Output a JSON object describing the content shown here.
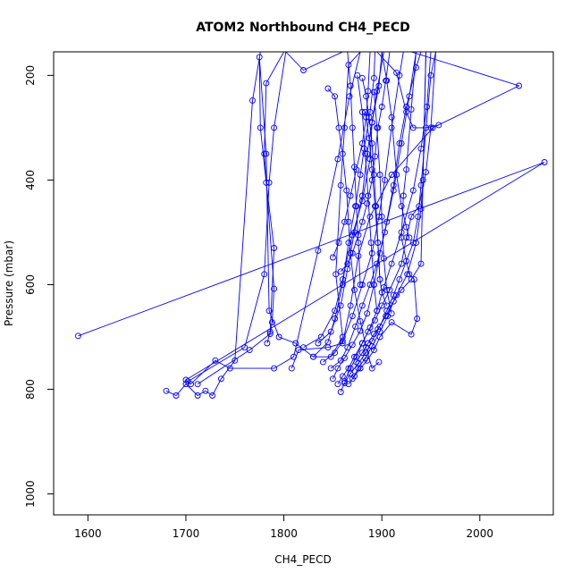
{
  "chart_data": {
    "type": "line",
    "title": "ATOM2 Northbound CH4_PECD",
    "xlabel": "CH4_PECD",
    "ylabel": "Pressure (mbar)",
    "xlim": [
      1565,
      2075
    ],
    "ylim": [
      1040,
      155
    ],
    "y_reversed": true,
    "x_ticks": [
      1600,
      1700,
      1800,
      1900,
      2000
    ],
    "y_ticks": [
      200,
      400,
      600,
      800,
      1000
    ],
    "x_tick_labels": [
      "1600",
      "1700",
      "1800",
      "1900",
      "2000"
    ],
    "y_tick_labels": [
      "200",
      "400",
      "600",
      "800",
      "1000"
    ],
    "grid": false,
    "legend": "none",
    "series_color": "#0000ff",
    "series": [
      {
        "points": [
          [
            1590,
            698
          ],
          [
            2066,
            366
          ],
          [
            1700,
            782
          ],
          [
            1705,
            790
          ],
          [
            1730,
            745
          ],
          [
            1745,
            760
          ],
          [
            1790,
            760
          ],
          [
            1810,
            738
          ],
          [
            1835,
            535
          ],
          [
            1855,
            360
          ],
          [
            1867,
            240
          ],
          [
            1878,
            155
          ],
          [
            1866,
            180
          ],
          [
            1862,
            300
          ],
          [
            1858,
            410
          ],
          [
            1853,
            580
          ],
          [
            1860,
            700
          ],
          [
            1848,
            738
          ],
          [
            1830,
            738
          ],
          [
            1812,
            712
          ],
          [
            1795,
            700
          ],
          [
            1785,
            650
          ],
          [
            1782,
            350
          ],
          [
            1775,
            165
          ],
          [
            1776,
            300
          ],
          [
            1782,
            405
          ],
          [
            1790,
            530
          ],
          [
            1786,
            690
          ],
          [
            1783,
            712
          ]
        ]
      },
      {
        "points": [
          [
            1680,
            803
          ],
          [
            1690,
            812
          ],
          [
            1700,
            790
          ],
          [
            1712,
            812
          ],
          [
            1720,
            803
          ],
          [
            1727,
            812
          ],
          [
            1736,
            780
          ],
          [
            1750,
            745
          ],
          [
            1768,
            248
          ],
          [
            1776,
            155
          ]
        ]
      },
      {
        "points": [
          [
            1702,
            785
          ],
          [
            1760,
            720
          ],
          [
            1780,
            580
          ],
          [
            1785,
            405
          ],
          [
            1790,
            300
          ],
          [
            1802,
            155
          ],
          [
            1820,
            190
          ],
          [
            1860,
            155
          ],
          [
            1930,
            155
          ],
          [
            2040,
            220
          ],
          [
            1952,
            300
          ],
          [
            1910,
            390
          ],
          [
            1888,
            470
          ],
          [
            1876,
            545
          ],
          [
            1868,
            640
          ],
          [
            1860,
            712
          ],
          [
            1845,
            720
          ],
          [
            1815,
            725
          ],
          [
            1808,
            760
          ]
        ]
      },
      {
        "points": [
          [
            1712,
            790
          ],
          [
            1765,
            725
          ],
          [
            1786,
            694
          ],
          [
            1788,
            672
          ],
          [
            1790,
            608
          ],
          [
            1780,
            350
          ],
          [
            1782,
            215
          ],
          [
            1800,
            155
          ],
          [
            1850,
            155
          ],
          [
            1895,
            155
          ],
          [
            1915,
            195
          ],
          [
            1925,
            270
          ],
          [
            1932,
            300
          ],
          [
            1945,
            300
          ],
          [
            1958,
            295
          ]
        ]
      },
      {
        "points": [
          [
            1820,
            720
          ],
          [
            1838,
            700
          ],
          [
            1852,
            650
          ],
          [
            1860,
            590
          ],
          [
            1870,
            505
          ],
          [
            1880,
            440
          ],
          [
            1888,
            360
          ],
          [
            1890,
            290
          ],
          [
            1897,
            220
          ],
          [
            1900,
            155
          ]
        ]
      },
      {
        "points": [
          [
            1830,
            738
          ],
          [
            1845,
            710
          ],
          [
            1852,
            665
          ],
          [
            1860,
            600
          ],
          [
            1866,
            520
          ],
          [
            1873,
            450
          ],
          [
            1878,
            390
          ],
          [
            1882,
            340
          ],
          [
            1888,
            270
          ],
          [
            1892,
            205
          ],
          [
            1893,
            155
          ]
        ]
      },
      {
        "points": [
          [
            1835,
            712
          ],
          [
            1848,
            690
          ],
          [
            1858,
            640
          ],
          [
            1865,
            570
          ],
          [
            1872,
            500
          ],
          [
            1880,
            430
          ],
          [
            1885,
            350
          ],
          [
            1890,
            290
          ],
          [
            1895,
            230
          ],
          [
            1902,
            155
          ]
        ]
      },
      {
        "points": [
          [
            1840,
            748
          ],
          [
            1852,
            730
          ],
          [
            1860,
            708
          ],
          [
            1870,
            660
          ],
          [
            1880,
            600
          ],
          [
            1890,
            540
          ],
          [
            1897,
            470
          ],
          [
            1903,
            400
          ],
          [
            1910,
            300
          ],
          [
            1918,
            200
          ],
          [
            1922,
            155
          ]
        ]
      },
      {
        "points": [
          [
            1848,
            760
          ],
          [
            1858,
            745
          ],
          [
            1865,
            720
          ],
          [
            1873,
            680
          ],
          [
            1880,
            640
          ],
          [
            1888,
            600
          ],
          [
            1895,
            560
          ],
          [
            1903,
            500
          ],
          [
            1912,
            420
          ],
          [
            1920,
            330
          ],
          [
            1928,
            240
          ],
          [
            1935,
            155
          ]
        ]
      },
      {
        "points": [
          [
            1850,
            780
          ],
          [
            1855,
            760
          ],
          [
            1862,
            740
          ],
          [
            1870,
            715
          ],
          [
            1878,
            688
          ],
          [
            1885,
            655
          ],
          [
            1892,
            600
          ],
          [
            1898,
            540
          ],
          [
            1905,
            480
          ],
          [
            1912,
            410
          ],
          [
            1918,
            330
          ],
          [
            1925,
            260
          ],
          [
            1935,
            185
          ],
          [
            1940,
            155
          ]
        ]
      },
      {
        "points": [
          [
            1855,
            790
          ],
          [
            1860,
            775
          ],
          [
            1866,
            760
          ],
          [
            1872,
            738
          ],
          [
            1880,
            712
          ],
          [
            1888,
            682
          ],
          [
            1895,
            650
          ],
          [
            1902,
            605
          ],
          [
            1910,
            560
          ],
          [
            1920,
            500
          ],
          [
            1932,
            420
          ],
          [
            1940,
            340
          ],
          [
            1946,
            260
          ],
          [
            1950,
            155
          ]
        ]
      },
      {
        "points": [
          [
            1858,
            805
          ],
          [
            1862,
            788
          ],
          [
            1868,
            770
          ],
          [
            1876,
            750
          ],
          [
            1884,
            730
          ],
          [
            1890,
            708
          ],
          [
            1896,
            685
          ],
          [
            1904,
            660
          ],
          [
            1915,
            620
          ],
          [
            1926,
            580
          ],
          [
            1935,
            520
          ],
          [
            1940,
            455
          ],
          [
            1942,
            400
          ],
          [
            1945,
            155
          ]
        ]
      },
      {
        "points": [
          [
            1862,
            785
          ],
          [
            1868,
            760
          ],
          [
            1874,
            738
          ],
          [
            1880,
            712
          ],
          [
            1886,
            690
          ],
          [
            1893,
            668
          ],
          [
            1900,
            640
          ],
          [
            1908,
            610
          ],
          [
            1920,
            560
          ],
          [
            1925,
            510
          ],
          [
            1930,
            470
          ],
          [
            1938,
            450
          ],
          [
            1945,
            385
          ],
          [
            1950,
            300
          ],
          [
            1955,
            155
          ]
        ]
      },
      {
        "points": [
          [
            1866,
            790
          ],
          [
            1872,
            775
          ],
          [
            1878,
            760
          ],
          [
            1885,
            745
          ],
          [
            1892,
            725
          ],
          [
            1898,
            700
          ],
          [
            1910,
            672
          ],
          [
            1930,
            695
          ],
          [
            1936,
            665
          ],
          [
            1933,
            590
          ],
          [
            1928,
            580
          ],
          [
            1920,
            510
          ],
          [
            1922,
            430
          ],
          [
            1925,
            380
          ],
          [
            1930,
            265
          ],
          [
            1935,
            155
          ]
        ]
      },
      {
        "points": [
          [
            1870,
            780
          ],
          [
            1876,
            760
          ],
          [
            1883,
            740
          ],
          [
            1890,
            718
          ],
          [
            1898,
            690
          ],
          [
            1906,
            660
          ],
          [
            1912,
            632
          ],
          [
            1920,
            610
          ],
          [
            1930,
            590
          ],
          [
            1940,
            560
          ],
          [
            1945,
            155
          ]
        ]
      },
      {
        "points": [
          [
            1874,
            748
          ],
          [
            1880,
            730
          ],
          [
            1886,
            712
          ],
          [
            1892,
            694
          ],
          [
            1898,
            680
          ],
          [
            1905,
            650
          ],
          [
            1912,
            620
          ],
          [
            1918,
            590
          ],
          [
            1925,
            555
          ],
          [
            1932,
            520
          ],
          [
            1937,
            470
          ],
          [
            1940,
            410
          ],
          [
            1950,
            200
          ],
          [
            1955,
            155
          ]
        ]
      },
      {
        "points": [
          [
            1858,
            575
          ],
          [
            1865,
            560
          ],
          [
            1870,
            540
          ],
          [
            1876,
            505
          ],
          [
            1880,
            480
          ],
          [
            1885,
            445
          ],
          [
            1890,
            400
          ],
          [
            1893,
            355
          ],
          [
            1896,
            300
          ],
          [
            1900,
            260
          ],
          [
            1904,
            210
          ],
          [
            1908,
            155
          ]
        ]
      },
      {
        "points": [
          [
            1850,
            548
          ],
          [
            1856,
            520
          ],
          [
            1862,
            480
          ],
          [
            1868,
            430
          ],
          [
            1874,
            380
          ],
          [
            1880,
            330
          ],
          [
            1884,
            280
          ],
          [
            1886,
            230
          ],
          [
            1888,
            155
          ]
        ]
      },
      {
        "points": [
          [
            1845,
            225
          ],
          [
            1852,
            240
          ],
          [
            1856,
            300
          ],
          [
            1860,
            350
          ],
          [
            1864,
            420
          ],
          [
            1866,
            480
          ],
          [
            1868,
            540
          ],
          [
            1872,
            610
          ],
          [
            1878,
            670
          ],
          [
            1884,
            720
          ],
          [
            1890,
            760
          ],
          [
            1897,
            748
          ]
        ]
      },
      {
        "points": [
          [
            1880,
            205
          ],
          [
            1884,
            240
          ],
          [
            1887,
            280
          ],
          [
            1890,
            330
          ],
          [
            1892,
            390
          ],
          [
            1894,
            450
          ],
          [
            1896,
            520
          ],
          [
            1898,
            590
          ],
          [
            1900,
            615
          ],
          [
            1905,
            640
          ]
        ]
      },
      {
        "points": [
          [
            1875,
            200
          ],
          [
            1880,
            270
          ],
          [
            1883,
            350
          ],
          [
            1886,
            430
          ],
          [
            1889,
            520
          ],
          [
            1892,
            600
          ],
          [
            1895,
            650
          ]
        ]
      },
      {
        "points": [
          [
            1883,
            270
          ],
          [
            1887,
            320
          ],
          [
            1890,
            380
          ],
          [
            1893,
            450
          ],
          [
            1896,
            520
          ],
          [
            1898,
            590
          ]
        ]
      },
      {
        "points": [
          [
            1892,
            232
          ],
          [
            1895,
            300
          ],
          [
            1898,
            390
          ],
          [
            1900,
            470
          ],
          [
            1902,
            550
          ],
          [
            1905,
            610
          ],
          [
            1910,
            655
          ]
        ]
      },
      {
        "points": [
          [
            1865,
            155
          ],
          [
            1868,
            220
          ],
          [
            1870,
            300
          ],
          [
            1872,
            375
          ],
          [
            1874,
            450
          ],
          [
            1876,
            520
          ],
          [
            1878,
            600
          ]
        ]
      },
      {
        "points": [
          [
            1900,
            155
          ],
          [
            1905,
            210
          ],
          [
            1910,
            280
          ],
          [
            1915,
            390
          ],
          [
            1920,
            450
          ],
          [
            1925,
            490
          ],
          [
            1928,
            510
          ]
        ]
      }
    ]
  }
}
